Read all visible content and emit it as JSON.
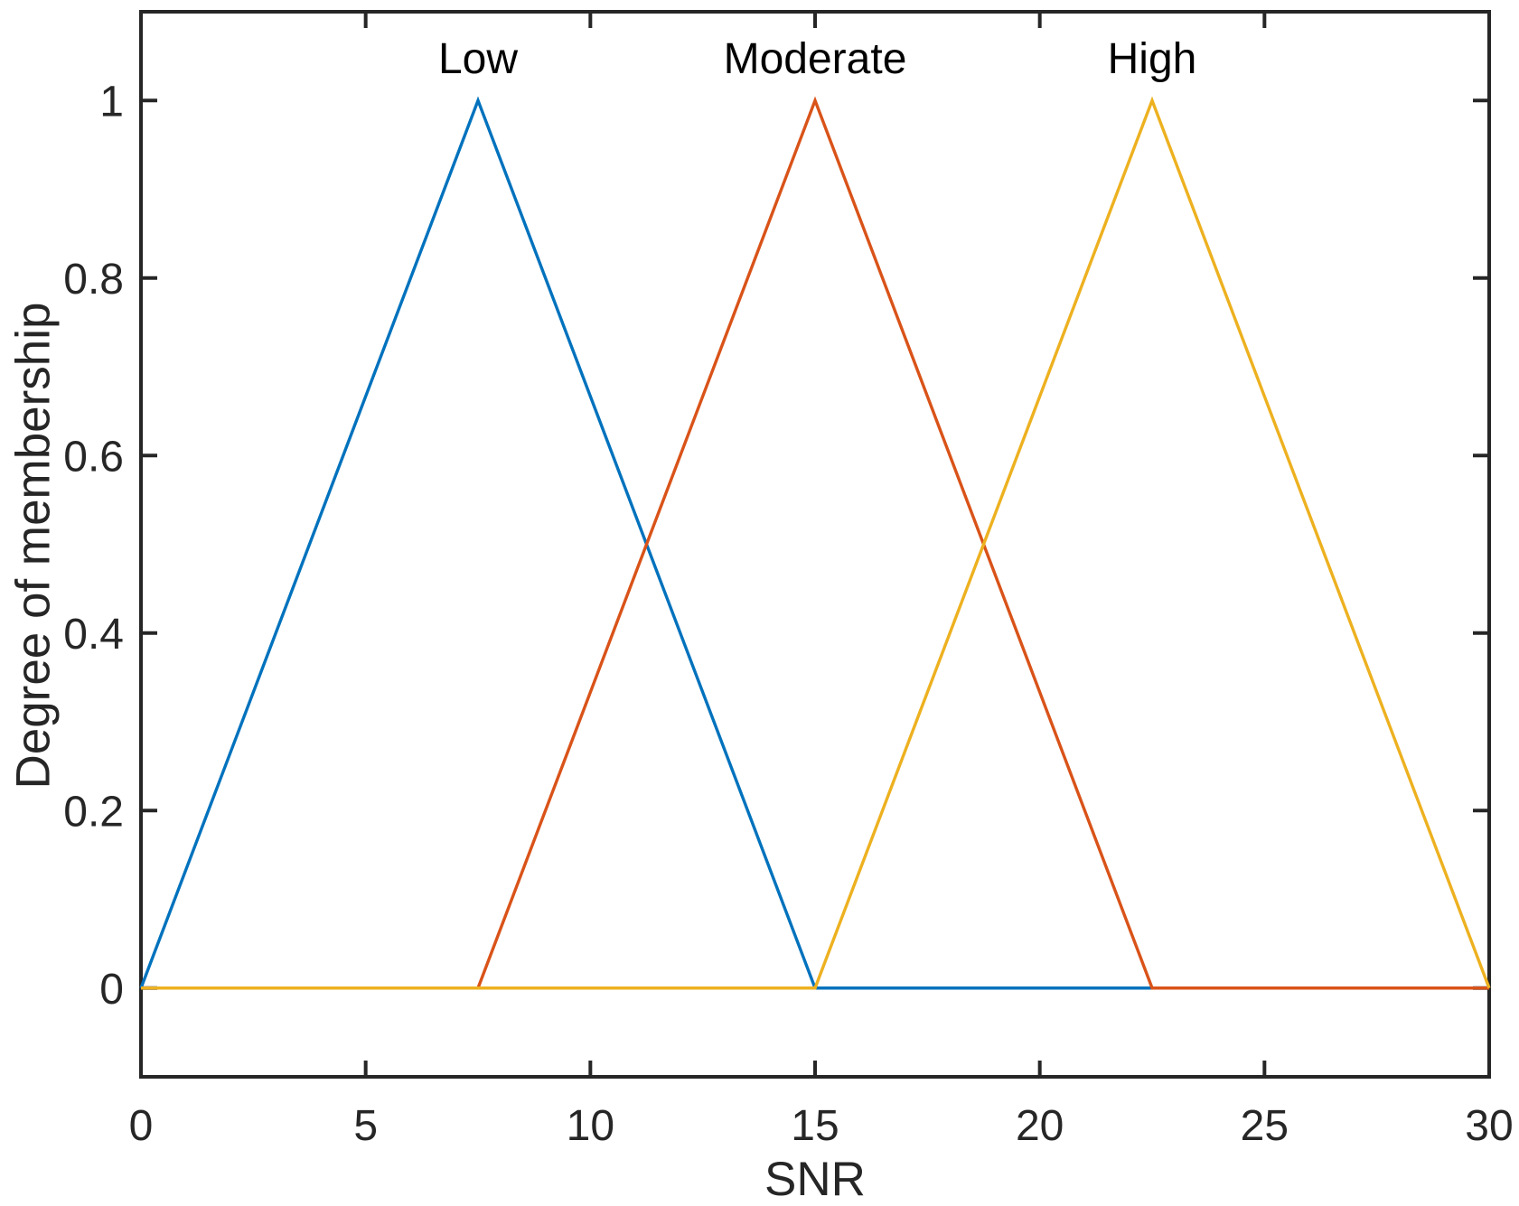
{
  "figure": {
    "background_color": "#ffffff",
    "axis_color": "#262626",
    "mf_label_color": "#000000"
  },
  "chart_data": {
    "type": "line",
    "subtype": "fuzzy-membership-functions",
    "title": "",
    "xlabel": "SNR",
    "ylabel": "Degree of membership",
    "xlim": [
      0,
      30
    ],
    "ylim": [
      -0.1,
      1.1
    ],
    "x_ticks": [
      0,
      5,
      10,
      15,
      20,
      25,
      30
    ],
    "x_tick_labels": [
      "0",
      "5",
      "10",
      "15",
      "20",
      "25",
      "30"
    ],
    "y_ticks": [
      0,
      0.2,
      0.4,
      0.6,
      0.8,
      1
    ],
    "y_tick_labels": [
      "0",
      "0.2",
      "0.4",
      "0.6",
      "0.8",
      "1"
    ],
    "grid": false,
    "box": true,
    "tick_direction": "in",
    "legend_position": "labels-above-peaks",
    "series": [
      {
        "name": "Low",
        "mf_type": "trimf",
        "params": [
          0,
          7.5,
          15
        ],
        "peak_x": 7.5,
        "peak_y": 1,
        "color": "#0072BD",
        "x": [
          0,
          7.5,
          15,
          30
        ],
        "y": [
          0,
          1,
          0,
          0
        ]
      },
      {
        "name": "Moderate",
        "mf_type": "trimf",
        "params": [
          7.5,
          15,
          22.5
        ],
        "peak_x": 15,
        "peak_y": 1,
        "color": "#D95319",
        "x": [
          0,
          7.5,
          15,
          22.5,
          30
        ],
        "y": [
          0,
          0,
          1,
          0,
          0
        ]
      },
      {
        "name": "High",
        "mf_type": "trimf",
        "params": [
          15,
          22.5,
          30
        ],
        "peak_x": 22.5,
        "peak_y": 1,
        "color": "#EDB120",
        "x": [
          0,
          15,
          22.5,
          30
        ],
        "y": [
          0,
          0,
          1,
          0
        ]
      }
    ]
  }
}
